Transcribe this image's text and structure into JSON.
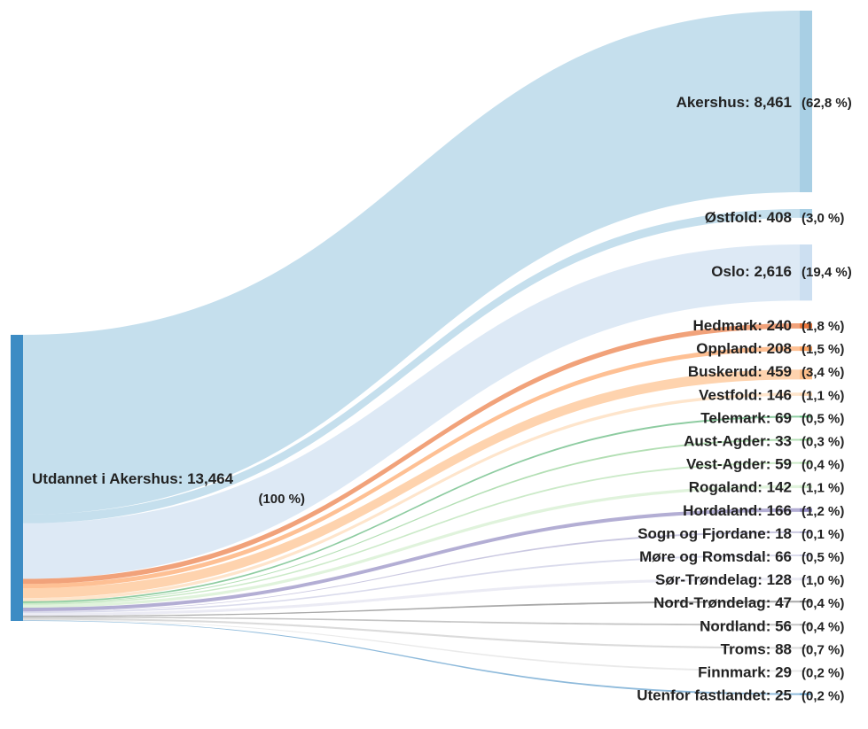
{
  "chart_data": {
    "type": "sankey",
    "source": {
      "name": "Utdannet i Akershus",
      "value": "13,464",
      "pct": "(100 %)",
      "color": "#3d8cc4"
    },
    "targets": [
      {
        "name": "Akershus",
        "value": 8461,
        "value_label": "8,461",
        "pct": "(62,8 %)",
        "color": "#9ecae1"
      },
      {
        "name": "Østfold",
        "value": 408,
        "value_label": "408",
        "pct": "(3,0 %)",
        "color": "#9ecae1"
      },
      {
        "name": "Oslo",
        "value": 2616,
        "value_label": "2,616",
        "pct": "(19,4 %)",
        "color": "#c6dbef"
      },
      {
        "name": "Hedmark",
        "value": 240,
        "value_label": "240",
        "pct": "(1,8 %)",
        "color": "#e6550d"
      },
      {
        "name": "Oppland",
        "value": 208,
        "value_label": "208",
        "pct": "(1,5 %)",
        "color": "#fd8d3c"
      },
      {
        "name": "Buskerud",
        "value": 459,
        "value_label": "459",
        "pct": "(3,4 %)",
        "color": "#fdae6b"
      },
      {
        "name": "Vestfold",
        "value": 146,
        "value_label": "146",
        "pct": "(1,1 %)",
        "color": "#fdd0a2"
      },
      {
        "name": "Telemark",
        "value": 69,
        "value_label": "69",
        "pct": "(0,5 %)",
        "color": "#31a354"
      },
      {
        "name": "Aust-Agder",
        "value": 33,
        "value_label": "33",
        "pct": "(0,3 %)",
        "color": "#74c476"
      },
      {
        "name": "Vest-Agder",
        "value": 59,
        "value_label": "59",
        "pct": "(0,4 %)",
        "color": "#a1d99b"
      },
      {
        "name": "Rogaland",
        "value": 142,
        "value_label": "142",
        "pct": "(1,1 %)",
        "color": "#c7e9c0"
      },
      {
        "name": "Hordaland",
        "value": 166,
        "value_label": "166",
        "pct": "(1,2 %)",
        "color": "#756bb1"
      },
      {
        "name": "Sogn og Fjordane",
        "value": 18,
        "value_label": "18",
        "pct": "(0,1 %)",
        "color": "#9e9ac8"
      },
      {
        "name": "Møre og Romsdal",
        "value": 66,
        "value_label": "66",
        "pct": "(0,5 %)",
        "color": "#bcbddc"
      },
      {
        "name": "Sør-Trøndelag",
        "value": 128,
        "value_label": "128",
        "pct": "(1,0 %)",
        "color": "#dadaeb"
      },
      {
        "name": "Nord-Trøndelag",
        "value": 47,
        "value_label": "47",
        "pct": "(0,4 %)",
        "color": "#636363"
      },
      {
        "name": "Nordland",
        "value": 56,
        "value_label": "56",
        "pct": "(0,4 %)",
        "color": "#969696"
      },
      {
        "name": "Troms",
        "value": 88,
        "value_label": "88",
        "pct": "(0,7 %)",
        "color": "#bdbdbd"
      },
      {
        "name": "Finnmark",
        "value": 29,
        "value_label": "29",
        "pct": "(0,2 %)",
        "color": "#d9d9d9"
      },
      {
        "name": "Utenfor fastlandet",
        "value": 25,
        "value_label": "25",
        "pct": "(0,2 %)",
        "color": "#3182bd"
      }
    ]
  }
}
